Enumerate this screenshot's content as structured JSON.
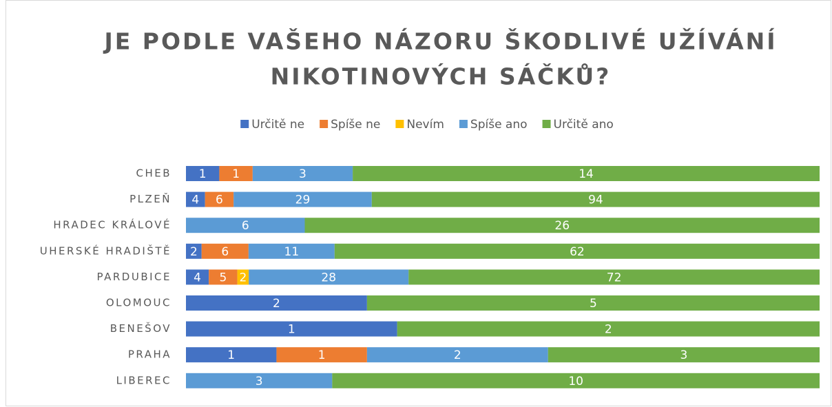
{
  "chart_data": {
    "type": "bar",
    "orientation": "horizontal",
    "stacked": "percent",
    "title": [
      "JE PODLE VAŠEHO NÁZORU ŠKODLIVÉ UŽÍVÁNÍ",
      "NIKOTINOVÝCH SÁČKŮ?"
    ],
    "legend": "top",
    "categories": [
      "CHEB",
      "PLZEŇ",
      "HRADEC KRÁLOVÉ",
      "UHERSKÉ HRADIŠTĚ",
      "PARDUBICE",
      "OLOMOUC",
      "BENEŠOV",
      "PRAHA",
      "LIBEREC"
    ],
    "series": [
      {
        "name": "Určitě ne",
        "color": "#4472c4",
        "values": [
          1,
          4,
          null,
          2,
          4,
          2,
          1,
          1,
          null
        ]
      },
      {
        "name": "Spíše ne",
        "color": "#ed7d31",
        "values": [
          1,
          6,
          null,
          6,
          5,
          null,
          null,
          1,
          null
        ]
      },
      {
        "name": "Nevím",
        "color": "#ffc000",
        "values": [
          null,
          null,
          null,
          null,
          2,
          null,
          null,
          null,
          null
        ]
      },
      {
        "name": "Spíše ano",
        "color": "#5b9bd5",
        "values": [
          3,
          29,
          6,
          11,
          28,
          null,
          null,
          2,
          3
        ]
      },
      {
        "name": "Určitě ano",
        "color": "#70ad47",
        "values": [
          14,
          94,
          26,
          62,
          72,
          5,
          2,
          3,
          10
        ]
      }
    ]
  }
}
